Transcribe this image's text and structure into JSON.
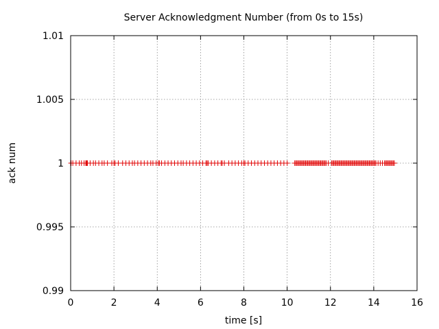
{
  "chart_data": {
    "type": "scatter",
    "title": "Server Acknowledgment Number (from 0s to 15s)",
    "xlabel": "time [s]",
    "ylabel": "ack num",
    "xlim": [
      0,
      16
    ],
    "ylim": [
      0.99,
      1.01
    ],
    "x_ticks": [
      "0",
      "2",
      "4",
      "6",
      "8",
      "10",
      "12",
      "14",
      "16"
    ],
    "y_ticks": [
      "0.99",
      "0.995",
      "1",
      "1.005",
      "1.01"
    ],
    "grid": true,
    "marker": "plus",
    "color": "#e00000",
    "series": [
      {
        "x": [
          0.02,
          0.1,
          0.25,
          0.4,
          0.5,
          0.62,
          0.7,
          0.72,
          0.75,
          0.78,
          0.9,
          1.05,
          1.15,
          1.3,
          1.45,
          1.55,
          1.7,
          1.9,
          2.0,
          2.05,
          2.2,
          2.4,
          2.55,
          2.7,
          2.85,
          2.95,
          3.1,
          3.25,
          3.4,
          3.55,
          3.7,
          3.8,
          3.95,
          4.05,
          4.1,
          4.2,
          4.35,
          4.5,
          4.65,
          4.8,
          4.95,
          5.1,
          5.2,
          5.35,
          5.5,
          5.65,
          5.8,
          5.95,
          6.1,
          6.25,
          6.3,
          6.35,
          6.5,
          6.65,
          6.8,
          6.95,
          7.0,
          7.1,
          7.3,
          7.45,
          7.6,
          7.75,
          7.9,
          8.0,
          8.05,
          8.2,
          8.35,
          8.5,
          8.65,
          8.8,
          8.95,
          9.1,
          9.25,
          9.4,
          9.55,
          9.7,
          9.85,
          10.0,
          10.35,
          10.4,
          10.45,
          10.5,
          10.55,
          10.6,
          10.65,
          10.7,
          10.75,
          10.8,
          10.85,
          10.9,
          10.95,
          11.0,
          11.05,
          11.1,
          11.15,
          11.2,
          11.25,
          11.3,
          11.35,
          11.4,
          11.45,
          11.5,
          11.55,
          11.6,
          11.65,
          11.7,
          11.75,
          11.8,
          11.9,
          12.05,
          12.1,
          12.15,
          12.2,
          12.25,
          12.3,
          12.35,
          12.4,
          12.45,
          12.5,
          12.55,
          12.6,
          12.65,
          12.7,
          12.75,
          12.8,
          12.85,
          12.9,
          12.95,
          13.0,
          13.05,
          13.1,
          13.15,
          13.2,
          13.25,
          13.3,
          13.35,
          13.4,
          13.45,
          13.5,
          13.55,
          13.6,
          13.65,
          13.7,
          13.75,
          13.8,
          13.85,
          13.9,
          13.95,
          14.0,
          14.05,
          14.1,
          14.2,
          14.3,
          14.4,
          14.5,
          14.55,
          14.6,
          14.65,
          14.7,
          14.75,
          14.8,
          14.85,
          14.9,
          14.95
        ],
        "y": 1
      }
    ]
  }
}
